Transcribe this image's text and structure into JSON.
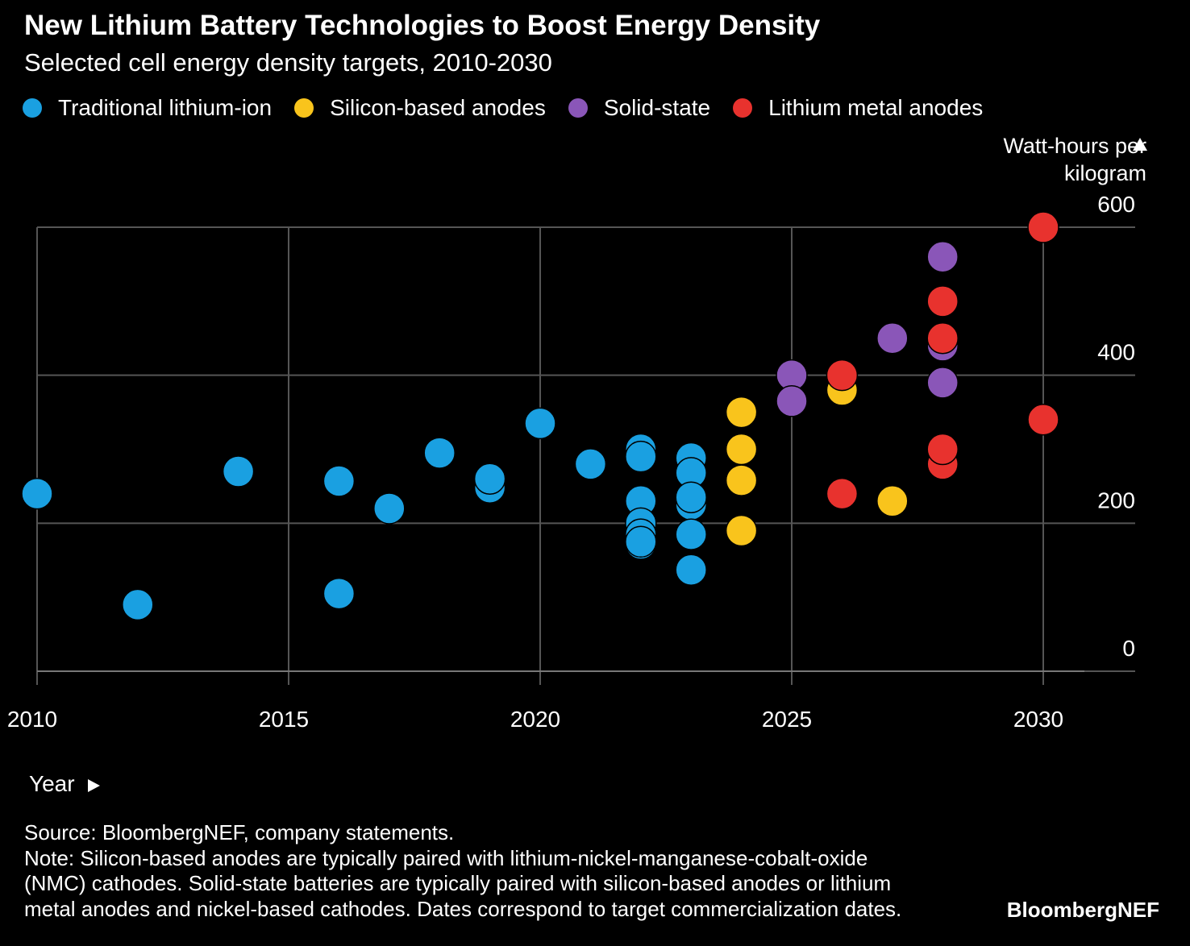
{
  "header": {
    "title": "New Lithium Battery Technologies to Boost Energy Density",
    "subtitle": "Selected cell energy density targets, 2010-2030"
  },
  "footer": {
    "source": "Source: BloombergNEF, company statements.",
    "note_lines": [
      "Note: Silicon-based anodes are typically paired with lithium-nickel-manganese-cobalt-oxide",
      "(NMC) cathodes. Solid-state batteries are typically paired with silicon-based anodes or lithium",
      "metal anodes and nickel-based cathodes. Dates correspond to target commercialization dates."
    ],
    "brand": "BloombergNEF"
  },
  "chart_data": {
    "type": "scatter",
    "title": "New Lithium Battery Technologies to Boost Energy Density",
    "subtitle": "Selected cell energy density targets, 2010-2030",
    "xlabel": "Year",
    "ylabel_lines": [
      "Watt-hours per",
      "kilogram"
    ],
    "xlim": [
      2010,
      2031.7
    ],
    "ylim": [
      0,
      600
    ],
    "x_ticks": [
      2010,
      2015,
      2020,
      2025,
      2030
    ],
    "y_ticks": [
      0,
      200,
      400,
      600
    ],
    "grid": true,
    "legend_position": "top-left",
    "series": [
      {
        "name": "Traditional lithium-ion",
        "color": "#1aa0e1",
        "points": [
          [
            2010,
            240
          ],
          [
            2012,
            90
          ],
          [
            2014,
            270
          ],
          [
            2016,
            105
          ],
          [
            2016,
            257
          ],
          [
            2017,
            220
          ],
          [
            2018,
            295
          ],
          [
            2019,
            248
          ],
          [
            2019,
            260
          ],
          [
            2020,
            335
          ],
          [
            2021,
            280
          ],
          [
            2022,
            300
          ],
          [
            2022,
            290
          ],
          [
            2022,
            230
          ],
          [
            2022,
            200
          ],
          [
            2022,
            185
          ],
          [
            2022,
            172
          ],
          [
            2022,
            175
          ],
          [
            2023,
            288
          ],
          [
            2023,
            268
          ],
          [
            2023,
            225
          ],
          [
            2023,
            235
          ],
          [
            2023,
            185
          ],
          [
            2023,
            137
          ]
        ]
      },
      {
        "name": "Silicon-based anodes",
        "color": "#f9c41c",
        "points": [
          [
            2024,
            350
          ],
          [
            2024,
            300
          ],
          [
            2024,
            258
          ],
          [
            2024,
            190
          ],
          [
            2026,
            380
          ],
          [
            2027,
            230
          ]
        ]
      },
      {
        "name": "Solid-state",
        "color": "#8a56b8",
        "points": [
          [
            2025,
            400
          ],
          [
            2025,
            365
          ],
          [
            2027,
            450
          ],
          [
            2028,
            560
          ],
          [
            2028,
            440
          ],
          [
            2028,
            390
          ]
        ]
      },
      {
        "name": "Lithium metal anodes",
        "color": "#e8322e",
        "points": [
          [
            2026,
            400
          ],
          [
            2026,
            240
          ],
          [
            2028,
            500
          ],
          [
            2028,
            450
          ],
          [
            2028,
            280
          ],
          [
            2028,
            300
          ],
          [
            2030,
            600
          ],
          [
            2030,
            340
          ]
        ]
      }
    ]
  }
}
